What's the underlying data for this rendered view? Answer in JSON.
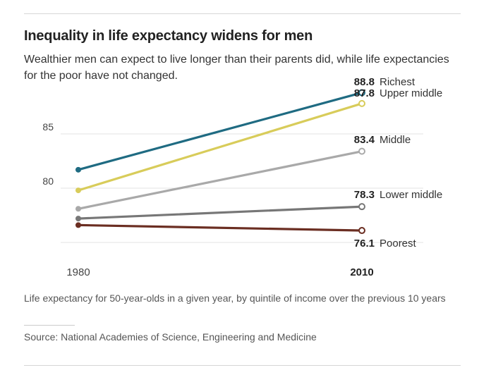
{
  "header": {
    "title": "Inequality in life expectancy widens for men",
    "subtitle": "Wealthier men can expect to live longer than their parents did, while life expectancies for the poor have not changed."
  },
  "footer": {
    "note": "Life expectancy for 50-year-olds in a given year, by quintile of income over the previous 10 years",
    "source": "Source: National Academies of Science, Engineering and Medicine"
  },
  "chart_data": {
    "type": "line",
    "title": "Inequality in life expectancy widens for men",
    "x": [
      "1980",
      "2010"
    ],
    "x_tick_labels": [
      "1980",
      "2010"
    ],
    "y_ticks": [
      80,
      85
    ],
    "y_tick_labels": [
      "80",
      "85"
    ],
    "ylim": [
      74.5,
      90.5
    ],
    "grid": true,
    "series": [
      {
        "name": "Richest",
        "values": [
          81.7,
          88.8
        ],
        "end_label": "88.8",
        "color": "#1f6b82"
      },
      {
        "name": "Upper middle",
        "values": [
          79.8,
          87.8
        ],
        "end_label": "87.8",
        "color": "#d8cc5a"
      },
      {
        "name": "Middle",
        "values": [
          78.1,
          83.4
        ],
        "end_label": "83.4",
        "color": "#a9a9a9"
      },
      {
        "name": "Lower middle",
        "values": [
          77.2,
          78.3
        ],
        "end_label": "78.3",
        "color": "#777777"
      },
      {
        "name": "Poorest",
        "values": [
          76.6,
          76.1
        ],
        "end_label": "76.1",
        "color": "#6b2e22"
      }
    ]
  }
}
